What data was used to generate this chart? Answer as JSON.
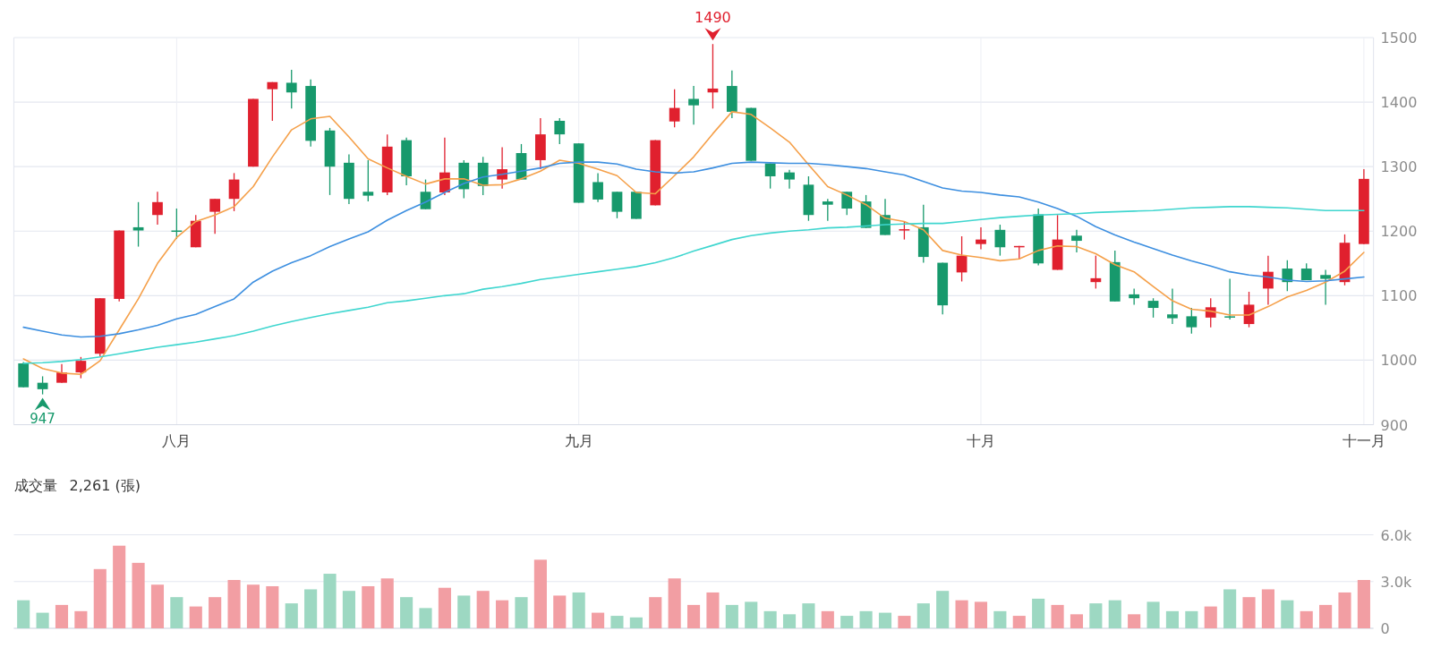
{
  "chart_data": [
    {
      "type": "candlestick",
      "categories": [
        null,
        null,
        null,
        null,
        null,
        null,
        null,
        null,
        "八月",
        null,
        null,
        null,
        null,
        null,
        null,
        null,
        null,
        null,
        null,
        null,
        null,
        null,
        null,
        null,
        null,
        null,
        null,
        null,
        null,
        "九月",
        null,
        null,
        null,
        null,
        null,
        null,
        null,
        null,
        null,
        null,
        null,
        null,
        null,
        null,
        null,
        null,
        null,
        null,
        null,
        null,
        "十月",
        null,
        null,
        null,
        null,
        null,
        null,
        null,
        null,
        null,
        null,
        null,
        null,
        null,
        null,
        null,
        null,
        null,
        null,
        null,
        "十一月"
      ],
      "ohlc": [
        [
          995,
          997,
          958,
          958
        ],
        [
          965,
          975,
          947,
          955
        ],
        [
          965,
          994,
          965,
          981
        ],
        [
          981,
          1005,
          972,
          999
        ],
        [
          1010,
          1096,
          1006,
          1096
        ],
        [
          1095,
          1201,
          1091,
          1201
        ],
        [
          1206,
          1245,
          1176,
          1201
        ],
        [
          1225,
          1261,
          1210,
          1245
        ],
        [
          1201,
          1235,
          1188,
          1200
        ],
        [
          1175,
          1225,
          1175,
          1216
        ],
        [
          1230,
          1250,
          1196,
          1250
        ],
        [
          1250,
          1290,
          1231,
          1280
        ],
        [
          1300,
          1405,
          1300,
          1405
        ],
        [
          1420,
          1431,
          1371,
          1431
        ],
        [
          1430,
          1450,
          1390,
          1415
        ],
        [
          1425,
          1435,
          1331,
          1340
        ],
        [
          1356,
          1360,
          1256,
          1300
        ],
        [
          1306,
          1319,
          1242,
          1250
        ],
        [
          1261,
          1310,
          1246,
          1255
        ],
        [
          1260,
          1350,
          1256,
          1331
        ],
        [
          1341,
          1345,
          1271,
          1285
        ],
        [
          1261,
          1280,
          1234,
          1234
        ],
        [
          1260,
          1345,
          1256,
          1291
        ],
        [
          1306,
          1310,
          1251,
          1265
        ],
        [
          1306,
          1315,
          1256,
          1270
        ],
        [
          1280,
          1330,
          1266,
          1296
        ],
        [
          1321,
          1335,
          1280,
          1280
        ],
        [
          1310,
          1375,
          1296,
          1350
        ],
        [
          1371,
          1375,
          1335,
          1350
        ],
        [
          1336,
          1336,
          1244,
          1244
        ],
        [
          1276,
          1290,
          1245,
          1249
        ],
        [
          1261,
          1261,
          1220,
          1230
        ],
        [
          1261,
          1261,
          1219,
          1219
        ],
        [
          1240,
          1341,
          1240,
          1341
        ],
        [
          1370,
          1420,
          1361,
          1391
        ],
        [
          1405,
          1425,
          1365,
          1395
        ],
        [
          1415,
          1490,
          1390,
          1421
        ],
        [
          1425,
          1449,
          1375,
          1385
        ],
        [
          1391,
          1391,
          1309,
          1309
        ],
        [
          1305,
          1305,
          1266,
          1285
        ],
        [
          1291,
          1295,
          1266,
          1280
        ],
        [
          1272,
          1285,
          1216,
          1225
        ],
        [
          1246,
          1250,
          1216,
          1241
        ],
        [
          1261,
          1261,
          1225,
          1235
        ],
        [
          1246,
          1256,
          1205,
          1205
        ],
        [
          1225,
          1250,
          1194,
          1194
        ],
        [
          1202,
          1215,
          1187,
          1203
        ],
        [
          1206,
          1241,
          1151,
          1160
        ],
        [
          1151,
          1151,
          1071,
          1085
        ],
        [
          1136,
          1192,
          1122,
          1162
        ],
        [
          1180,
          1206,
          1172,
          1187
        ],
        [
          1202,
          1210,
          1162,
          1175
        ],
        [
          1175,
          1177,
          1157,
          1177
        ],
        [
          1226,
          1235,
          1147,
          1150
        ],
        [
          1140,
          1225,
          1140,
          1187
        ],
        [
          1193,
          1202,
          1167,
          1185
        ],
        [
          1121,
          1162,
          1111,
          1127
        ],
        [
          1152,
          1170,
          1091,
          1091
        ],
        [
          1102,
          1111,
          1086,
          1096
        ],
        [
          1092,
          1096,
          1066,
          1081
        ],
        [
          1071,
          1111,
          1056,
          1065
        ],
        [
          1068,
          1081,
          1041,
          1051
        ],
        [
          1066,
          1096,
          1051,
          1082
        ],
        [
          1068,
          1126,
          1063,
          1066
        ],
        [
          1056,
          1106,
          1051,
          1086
        ],
        [
          1111,
          1162,
          1086,
          1137
        ],
        [
          1142,
          1155,
          1107,
          1121
        ],
        [
          1142,
          1150,
          1124,
          1124
        ],
        [
          1132,
          1140,
          1086,
          1126
        ],
        [
          1121,
          1195,
          1116,
          1182
        ],
        [
          1180,
          1296,
          1180,
          1281
        ]
      ],
      "colors": [
        "#17996c",
        "#17996c",
        "#e0202e",
        "#e0202e",
        "#e0202e",
        "#e0202e",
        "#17996c",
        "#e0202e",
        "#17996c",
        "#e0202e",
        "#e0202e",
        "#e0202e",
        "#e0202e",
        "#e0202e",
        "#17996c",
        "#17996c",
        "#17996c",
        "#17996c",
        "#17996c",
        "#e0202e",
        "#17996c",
        "#17996c",
        "#e0202e",
        "#17996c",
        "#17996c",
        "#e0202e",
        "#17996c",
        "#e0202e",
        "#17996c",
        "#17996c",
        "#17996c",
        "#17996c",
        "#17996c",
        "#e0202e",
        "#e0202e",
        "#17996c",
        "#e0202e",
        "#17996c",
        "#17996c",
        "#17996c",
        "#17996c",
        "#17996c",
        "#17996c",
        "#17996c",
        "#17996c",
        "#17996c",
        "#e0202e",
        "#17996c",
        "#17996c",
        "#e0202e",
        "#e0202e",
        "#17996c",
        "#e0202e",
        "#17996c",
        "#e0202e",
        "#17996c",
        "#e0202e",
        "#17996c",
        "#17996c",
        "#17996c",
        "#17996c",
        "#17996c",
        "#e0202e",
        "#17996c",
        "#e0202e",
        "#e0202e",
        "#17996c",
        "#17996c",
        "#17996c",
        "#e0202e",
        "#e0202e"
      ],
      "series": [
        {
          "type": "line",
          "color": "#f5a04a",
          "values": [
            1002,
            987,
            980,
            978,
            999,
            1047,
            1095,
            1150,
            1190,
            1215,
            1225,
            1238,
            1269,
            1315,
            1357,
            1374,
            1378,
            1346,
            1312,
            1298,
            1285,
            1273,
            1281,
            1281,
            1271,
            1272,
            1281,
            1293,
            1310,
            1305,
            1296,
            1286,
            1260,
            1258,
            1286,
            1315,
            1351,
            1385,
            1381,
            1360,
            1338,
            1303,
            1269,
            1256,
            1241,
            1220,
            1215,
            1202,
            1170,
            1163,
            1159,
            1154,
            1157,
            1170,
            1177,
            1176,
            1165,
            1148,
            1137,
            1114,
            1092,
            1079,
            1076,
            1070,
            1070,
            1083,
            1098,
            1108,
            1121,
            1138,
            1167
          ]
        },
        {
          "type": "line",
          "color": "#3d8fe0",
          "values": [
            1051,
            1045,
            1039,
            1036,
            1037,
            1041,
            1047,
            1054,
            1064,
            1071,
            1083,
            1095,
            1121,
            1138,
            1151,
            1162,
            1176,
            1188,
            1199,
            1217,
            1232,
            1245,
            1260,
            1274,
            1284,
            1288,
            1293,
            1298,
            1305,
            1307,
            1307,
            1304,
            1296,
            1292,
            1290,
            1292,
            1298,
            1305,
            1307,
            1306,
            1305,
            1305,
            1303,
            1300,
            1297,
            1292,
            1287,
            1277,
            1267,
            1262,
            1260,
            1256,
            1253,
            1245,
            1235,
            1223,
            1207,
            1194,
            1183,
            1173,
            1163,
            1154,
            1146,
            1137,
            1132,
            1129,
            1124,
            1122,
            1123,
            1126,
            1129
          ]
        },
        {
          "type": "line",
          "color": "#3fd6cf",
          "values": [
            995,
            996,
            998,
            1001,
            1005,
            1010,
            1015,
            1020,
            1024,
            1028,
            1033,
            1038,
            1045,
            1053,
            1060,
            1066,
            1072,
            1077,
            1082,
            1089,
            1092,
            1096,
            1100,
            1103,
            1110,
            1114,
            1119,
            1125,
            1129,
            1133,
            1137,
            1141,
            1145,
            1151,
            1159,
            1169,
            1178,
            1187,
            1193,
            1197,
            1200,
            1202,
            1205,
            1206,
            1208,
            1210,
            1211,
            1212,
            1212,
            1215,
            1218,
            1221,
            1223,
            1225,
            1226,
            1227,
            1229,
            1230,
            1231,
            1232,
            1234,
            1236,
            1237,
            1238,
            1238,
            1237,
            1236,
            1234,
            1232,
            1232,
            1232
          ]
        }
      ],
      "ylim": [
        900,
        1500
      ],
      "yticks": [
        900,
        1000,
        1100,
        1200,
        1300,
        1400,
        1500
      ],
      "grid": true,
      "annotations": [
        {
          "text": "1490",
          "y": 1490
        },
        {
          "text": "947",
          "y": 947
        }
      ]
    },
    {
      "type": "bar",
      "title": "成交量",
      "subtitle": "2,261 (張)",
      "categories": [
        null,
        null,
        null,
        null,
        null,
        null,
        null,
        null,
        null,
        null,
        null,
        null,
        null,
        null,
        null,
        null,
        null,
        null,
        null,
        null,
        null,
        null,
        null,
        null,
        null,
        null,
        null,
        null,
        null,
        null,
        null,
        null,
        null,
        null,
        null,
        null,
        null,
        null,
        null,
        null,
        null,
        null,
        null,
        null,
        null,
        null,
        null,
        null,
        null,
        null,
        null,
        null,
        null,
        null,
        null,
        null,
        null,
        null,
        null,
        null,
        null,
        null,
        null,
        null,
        null,
        null,
        null,
        null,
        null,
        null,
        null
      ],
      "values": [
        1800,
        1000,
        1500,
        1100,
        3800,
        5300,
        4200,
        2800,
        2000,
        1400,
        2000,
        3100,
        2800,
        2700,
        1600,
        2500,
        3500,
        2400,
        2700,
        3200,
        2000,
        1300,
        2600,
        2100,
        2400,
        1800,
        2000,
        4400,
        2100,
        2300,
        1000,
        800,
        700,
        2000,
        3200,
        1500,
        2300,
        1500,
        1700,
        1100,
        900,
        1600,
        1100,
        800,
        1100,
        1000,
        800,
        1600,
        2400,
        1800,
        1700,
        1100,
        800,
        1900,
        1500,
        900,
        1600,
        1800,
        900,
        1700,
        1100,
        1100,
        1400,
        2500,
        2000,
        2500,
        1800,
        1100,
        1500,
        2300,
        3100
      ],
      "colors": [
        "#9dd8c2",
        "#9dd8c2",
        "#f29ea3",
        "#f29ea3",
        "#f29ea3",
        "#f29ea3",
        "#f29ea3",
        "#f29ea3",
        "#9dd8c2",
        "#f29ea3",
        "#f29ea3",
        "#f29ea3",
        "#f29ea3",
        "#f29ea3",
        "#9dd8c2",
        "#9dd8c2",
        "#9dd8c2",
        "#9dd8c2",
        "#f29ea3",
        "#f29ea3",
        "#9dd8c2",
        "#9dd8c2",
        "#f29ea3",
        "#9dd8c2",
        "#f29ea3",
        "#f29ea3",
        "#9dd8c2",
        "#f29ea3",
        "#f29ea3",
        "#9dd8c2",
        "#f29ea3",
        "#9dd8c2",
        "#9dd8c2",
        "#f29ea3",
        "#f29ea3",
        "#f29ea3",
        "#f29ea3",
        "#9dd8c2",
        "#9dd8c2",
        "#9dd8c2",
        "#9dd8c2",
        "#9dd8c2",
        "#f29ea3",
        "#9dd8c2",
        "#9dd8c2",
        "#9dd8c2",
        "#f29ea3",
        "#9dd8c2",
        "#9dd8c2",
        "#f29ea3",
        "#f29ea3",
        "#9dd8c2",
        "#f29ea3",
        "#9dd8c2",
        "#f29ea3",
        "#f29ea3",
        "#9dd8c2",
        "#9dd8c2",
        "#f29ea3",
        "#9dd8c2",
        "#9dd8c2",
        "#9dd8c2",
        "#f29ea3",
        "#9dd8c2",
        "#f29ea3",
        "#f29ea3",
        "#9dd8c2",
        "#f29ea3",
        "#f29ea3",
        "#f29ea3",
        "#f29ea3"
      ],
      "ylim": [
        0,
        6000
      ],
      "yticks": [
        0,
        {
          "value": 3000,
          "label": "3.0k"
        },
        {
          "value": 6000,
          "label": "6.0k"
        }
      ],
      "grid": "y",
      "tick_labels": "y"
    }
  ]
}
